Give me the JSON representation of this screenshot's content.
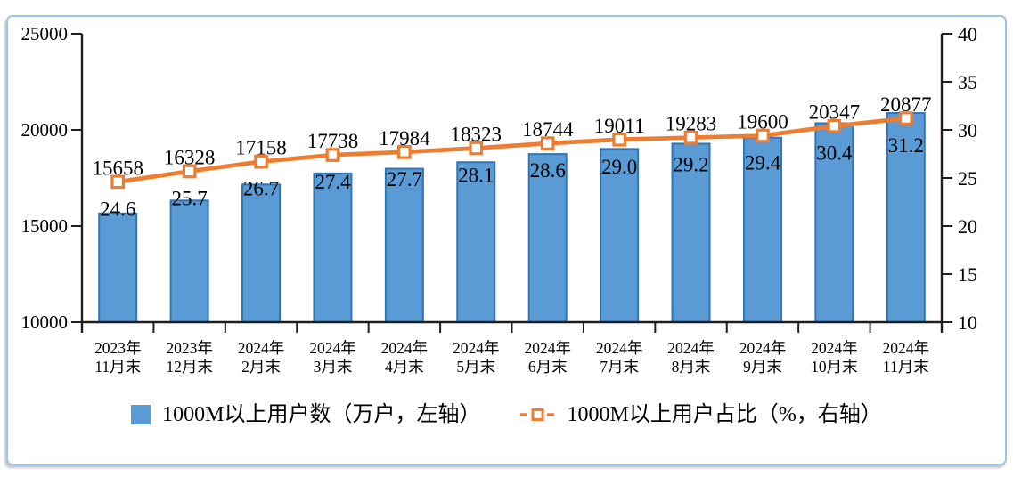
{
  "figure": {
    "background": "#ffffff",
    "border_color": "#9DC3E6"
  },
  "legend": {
    "bar_label": "1000M以上用户数（万户，左轴）",
    "line_label": "1000M以上用户占比（%，右轴）"
  },
  "chart_data": {
    "type": "combo (bar + line)",
    "title": "",
    "categories": [
      "2023年\n11月末",
      "2023年\n12月末",
      "2024年\n2月末",
      "2024年\n3月末",
      "2024年\n4月末",
      "2024年\n5月末",
      "2024年\n6月末",
      "2024年\n7月末",
      "2024年\n8月末",
      "2024年\n9月末",
      "2024年\n10月末",
      "2024年\n11月末"
    ],
    "series": [
      {
        "name": "1000M以上用户数（万户，左轴）",
        "type": "bar",
        "axis": "left",
        "values": [
          15658,
          16328,
          17158,
          17738,
          17984,
          18323,
          18744,
          19011,
          19283,
          19600,
          20347,
          20877
        ],
        "data_labels": [
          "15658",
          "16328",
          "17158",
          "17738",
          "17984",
          "18323",
          "18744",
          "19011",
          "19283",
          "19600",
          "20347",
          "20877"
        ],
        "fill_color": "#5B9BD5",
        "border_color": "#2E75B6"
      },
      {
        "name": "1000M以上用户占比（%，右轴）",
        "type": "line",
        "axis": "right",
        "values": [
          24.6,
          25.7,
          26.7,
          27.4,
          27.7,
          28.1,
          28.6,
          29.0,
          29.2,
          29.4,
          30.4,
          31.2
        ],
        "data_labels": [
          "24.6",
          "25.7",
          "26.7",
          "27.4",
          "27.7",
          "28.1",
          "28.6",
          "29.0",
          "29.2",
          "29.4",
          "30.4",
          "31.2"
        ],
        "line_color": "#ED7D31",
        "marker": "open-square"
      }
    ],
    "left_axis": {
      "min": 10000,
      "max": 25000,
      "tick_step": 5000,
      "ticks": [
        25000,
        20000,
        15000,
        10000
      ]
    },
    "right_axis": {
      "min": 10,
      "max": 40,
      "tick_step": 5,
      "ticks": [
        40,
        35,
        30,
        25,
        20,
        15,
        10
      ]
    },
    "grid": false,
    "legend_position": "bottom",
    "label_color": "#000000",
    "axis_color": "#1f1f1f"
  }
}
